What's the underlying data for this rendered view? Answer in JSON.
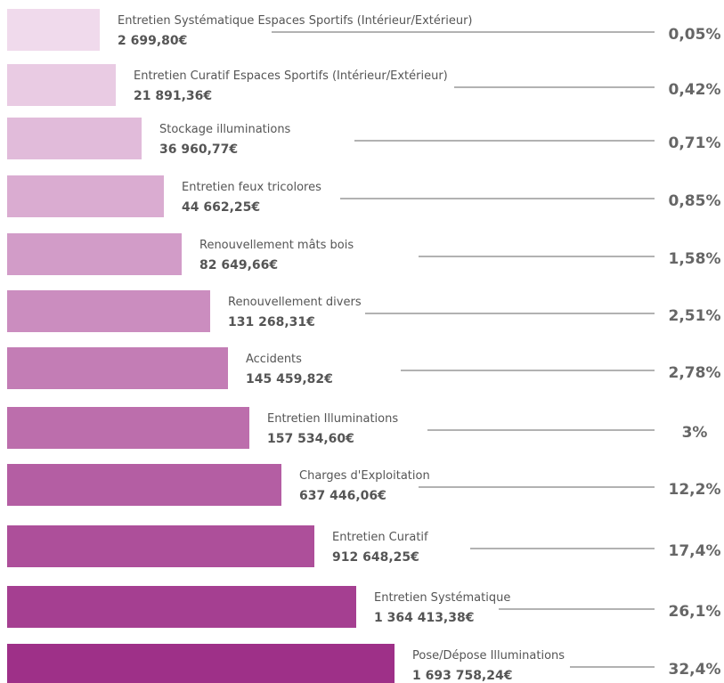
{
  "rows": [
    {
      "label": "Entretien Systématique Espaces Sportifs (Intérieur/Extérieur)",
      "amount": "2 699,80€",
      "share": "0,05%"
    },
    {
      "label": "Entretien Curatif Espaces Sportifs (Intérieur/Extérieur)",
      "amount": "21 891,36€",
      "share": "0,42%"
    },
    {
      "label": "Stockage illuminations",
      "amount": "36 960,77€",
      "share": "0,71%"
    },
    {
      "label": "Entretien feux tricolores",
      "amount": "44 662,25€",
      "share": "0,85%"
    },
    {
      "label": "Renouvellement mâts bois",
      "amount": "82 649,66€",
      "share": "1,58%"
    },
    {
      "label": "Renouvellement divers",
      "amount": "131 268,31€",
      "share": "2,51%"
    },
    {
      "label": "Accidents",
      "amount": "145 459,82€",
      "share": "2,78%"
    },
    {
      "label": "Entretien Illuminations",
      "amount": "157 534,60€",
      "share": "3%"
    },
    {
      "label": "Charges d'Exploitation",
      "amount": "637 446,06€",
      "share": "12,2%"
    },
    {
      "label": "Entretien Curatif",
      "amount": "912 648,25€",
      "share": "17,4%"
    },
    {
      "label": "Entretien Systématique",
      "amount": "1 364 413,38€",
      "share": "26,1%"
    },
    {
      "label": "Pose/Dépose Illuminations",
      "amount": "1 693 758,24€",
      "share": "32,4%"
    }
  ]
}
